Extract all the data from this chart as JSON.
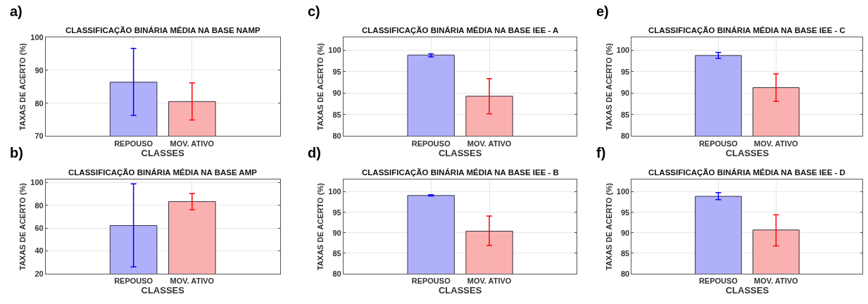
{
  "chart_data": [
    {
      "type": "bar",
      "title": "CLASSIFICAÇÃO BINÁRIA MÉDIA NA BASE NAMP",
      "xlabel": "CLASSES",
      "ylabel": "TAXAS DE ACERTO (%)",
      "annotations": [
        "a)"
      ],
      "categories": [
        "REPOUSO",
        "MOV. ATIVO"
      ],
      "values": [
        86.4,
        80.5
      ],
      "colors": [
        "#b0b0fa",
        "#fbb0b0"
      ],
      "errors": [
        [
          76.3,
          96.7
        ],
        [
          74.9,
          86.2
        ]
      ],
      "ylim": [
        70,
        100
      ],
      "yticks": [
        70,
        80,
        90,
        100
      ],
      "grid": true
    },
    {
      "type": "bar",
      "title": "CLASSIFICAÇÃO BINÁRIA MÉDIA NA BASE AMP",
      "xlabel": "CLASSES",
      "ylabel": "TAXAS DE ACERTO (%)",
      "annotations": [
        "b)"
      ],
      "categories": [
        "REPOUSO",
        "MOV. ATIVO"
      ],
      "values": [
        62.3,
        83.3
      ],
      "colors": [
        "#b0b0fa",
        "#fbb0b0"
      ],
      "errors": [
        [
          26.0,
          98.9
        ],
        [
          76.2,
          90.3
        ]
      ],
      "ylim": [
        20,
        102.6
      ],
      "yticks": [
        20,
        40,
        60,
        80,
        100
      ],
      "grid": true
    },
    {
      "type": "bar",
      "title": "CLASSIFICAÇÃO BINÁRIA MÉDIA NA BASE IEE - A",
      "xlabel": "CLASSES",
      "ylabel": "TAXAS DE ACERTO (%)",
      "annotations": [
        "c)"
      ],
      "categories": [
        "REPOUSO",
        "MOV. ATIVO"
      ],
      "values": [
        98.9,
        89.3
      ],
      "colors": [
        "#b0b0fa",
        "#fbb0b0"
      ],
      "errors": [
        [
          98.5,
          99.2
        ],
        [
          85.2,
          93.4
        ]
      ],
      "ylim": [
        80,
        103
      ],
      "yticks": [
        80,
        85,
        90,
        95,
        100
      ],
      "grid": true
    },
    {
      "type": "bar",
      "title": "CLASSIFICAÇÃO BINÁRIA MÉDIA NA BASE IEE - B",
      "xlabel": "CLASSES",
      "ylabel": "TAXAS DE ACERTO (%)",
      "annotations": [
        "d)"
      ],
      "categories": [
        "REPOUSO",
        "MOV. ATIVO"
      ],
      "values": [
        99.1,
        90.4
      ],
      "colors": [
        "#b0b0fa",
        "#fbb0b0"
      ],
      "errors": [
        [
          99.0,
          99.3
        ],
        [
          86.9,
          94.1
        ]
      ],
      "ylim": [
        80,
        103
      ],
      "yticks": [
        80,
        85,
        90,
        95,
        100
      ],
      "grid": true
    },
    {
      "type": "bar",
      "title": "CLASSIFICAÇÃO BINÁRIA MÉDIA NA BASE IEE - C",
      "xlabel": "CLASSES",
      "ylabel": "TAXAS DE ACERTO (%)",
      "annotations": [
        "e)"
      ],
      "categories": [
        "REPOUSO",
        "MOV. ATIVO"
      ],
      "values": [
        98.8,
        91.3
      ],
      "colors": [
        "#b0b0fa",
        "#fbb0b0"
      ],
      "errors": [
        [
          98.1,
          99.5
        ],
        [
          88.1,
          94.5
        ]
      ],
      "ylim": [
        80,
        103
      ],
      "yticks": [
        80,
        85,
        90,
        95,
        100
      ],
      "grid": true
    },
    {
      "type": "bar",
      "title": "CLASSIFICAÇÃO BINÁRIA MÉDIA NA BASE IEE - D",
      "xlabel": "CLASSES",
      "ylabel": "TAXAS DE ACERTO (%)",
      "annotations": [
        "f)"
      ],
      "categories": [
        "REPOUSO",
        "MOV. ATIVO"
      ],
      "values": [
        98.9,
        90.7
      ],
      "colors": [
        "#b0b0fa",
        "#fbb0b0"
      ],
      "errors": [
        [
          98.1,
          99.8
        ],
        [
          86.8,
          94.4
        ]
      ],
      "ylim": [
        80,
        103
      ],
      "yticks": [
        80,
        85,
        90,
        95,
        100
      ],
      "grid": true
    }
  ]
}
